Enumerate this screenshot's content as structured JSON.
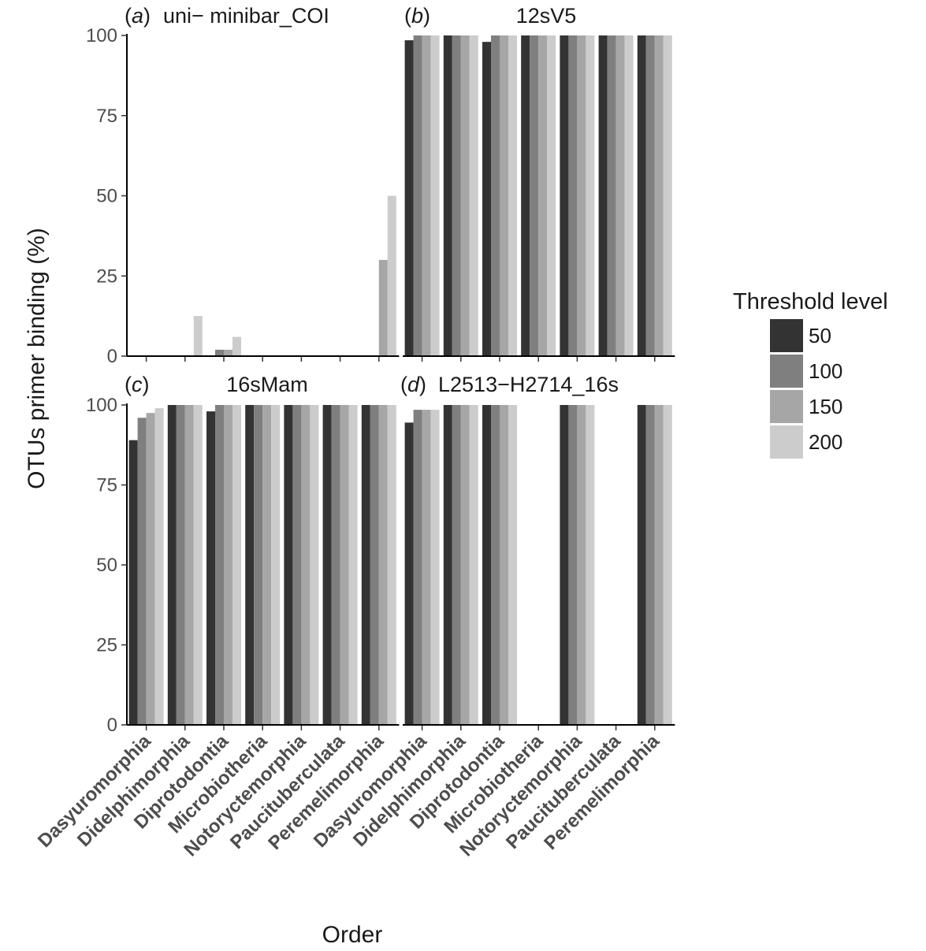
{
  "chart_data": {
    "type": "bar",
    "xlabel": "Order",
    "ylabel": "OTUs primer binding (%)",
    "ylim": [
      0,
      100
    ],
    "yticks": [
      "0",
      "25",
      "50",
      "75",
      "100"
    ],
    "legend": {
      "title": "Threshold level",
      "position": "right",
      "entries": [
        {
          "label": "50",
          "color": "#333333"
        },
        {
          "label": "100",
          "color": "#7f7f7f"
        },
        {
          "label": "150",
          "color": "#a6a6a6"
        },
        {
          "label": "200",
          "color": "#cccccc"
        }
      ]
    },
    "categories": [
      "Dasyuromorphia",
      "Didelphimorphia",
      "Diprotodontia",
      "Microbiotheria",
      "Notoryctemorphia",
      "Paucituberculata",
      "Peremelimorphia"
    ],
    "panels": [
      {
        "tag": "a",
        "title": "uni− minibar_COI",
        "series": [
          {
            "name": "50",
            "values": [
              0,
              0,
              0,
              0,
              0,
              0,
              0
            ]
          },
          {
            "name": "100",
            "values": [
              0,
              0,
              2,
              0,
              0,
              0,
              0
            ]
          },
          {
            "name": "150",
            "values": [
              0,
              0,
              2,
              0,
              0,
              0,
              30
            ]
          },
          {
            "name": "200",
            "values": [
              0,
              12.5,
              6,
              0,
              0,
              0,
              50
            ]
          }
        ]
      },
      {
        "tag": "b",
        "title": "12sV5",
        "series": [
          {
            "name": "50",
            "values": [
              98.5,
              100,
              98,
              100,
              100,
              100,
              100
            ]
          },
          {
            "name": "100",
            "values": [
              100,
              100,
              100,
              100,
              100,
              100,
              100
            ]
          },
          {
            "name": "150",
            "values": [
              100,
              100,
              100,
              100,
              100,
              100,
              100
            ]
          },
          {
            "name": "200",
            "values": [
              100,
              100,
              100,
              100,
              100,
              100,
              100
            ]
          }
        ]
      },
      {
        "tag": "c",
        "title": "16sMam",
        "series": [
          {
            "name": "50",
            "values": [
              89,
              100,
              98,
              100,
              100,
              100,
              100
            ]
          },
          {
            "name": "100",
            "values": [
              96,
              100,
              100,
              100,
              100,
              100,
              100
            ]
          },
          {
            "name": "150",
            "values": [
              97.5,
              100,
              100,
              100,
              100,
              100,
              100
            ]
          },
          {
            "name": "200",
            "values": [
              99,
              100,
              100,
              100,
              100,
              100,
              100
            ]
          }
        ]
      },
      {
        "tag": "d",
        "title": "L2513−H2714_16s",
        "series": [
          {
            "name": "50",
            "values": [
              94.5,
              100,
              100,
              0,
              100,
              0,
              100
            ]
          },
          {
            "name": "100",
            "values": [
              98.5,
              100,
              100,
              0,
              100,
              0,
              100
            ]
          },
          {
            "name": "150",
            "values": [
              98.5,
              100,
              100,
              0,
              100,
              0,
              100
            ]
          },
          {
            "name": "200",
            "values": [
              98.5,
              100,
              100,
              0,
              100,
              0,
              100
            ]
          }
        ]
      }
    ]
  }
}
